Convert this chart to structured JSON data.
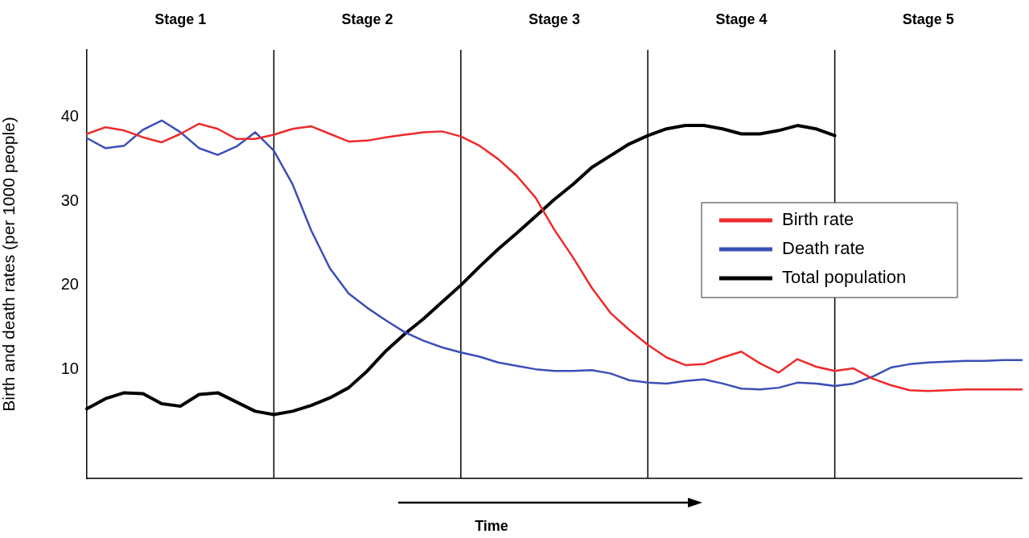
{
  "chart_data": {
    "type": "line",
    "xlabel": "Time",
    "ylabel": "Birth and death rates (per 1000 people)",
    "ylim": [
      -3,
      48
    ],
    "yticks": [
      10,
      20,
      30,
      40
    ],
    "tick_labels": "y",
    "legend": "right",
    "grid": "x",
    "categories": [
      null,
      null,
      null,
      null,
      null,
      null,
      null,
      null,
      null,
      null,
      null,
      null,
      null,
      null,
      null,
      null,
      null,
      null,
      null,
      null,
      null,
      null,
      null,
      null,
      null,
      null,
      null,
      null,
      null,
      null,
      null,
      null,
      null,
      null,
      null,
      null,
      null,
      null,
      null,
      null,
      null,
      null,
      null,
      null,
      null,
      null,
      null,
      null,
      null,
      null,
      null
    ],
    "series": [
      {
        "name": "Birth rate",
        "color": "#ee2a2a",
        "values": [
          38,
          38.8,
          38.4,
          37.6,
          37,
          38,
          39.2,
          38.6,
          37.4,
          37.4,
          37.9,
          38.6,
          38.9,
          38,
          37.1,
          37.2,
          37.6,
          37.9,
          38.2,
          38.3,
          37.7,
          36.6,
          35,
          33,
          30.4,
          26.6,
          23.3,
          19.7,
          16.7,
          14.7,
          12.9,
          11.4,
          10.5,
          10.6,
          11.4,
          12.1,
          10.7,
          9.6,
          11.2,
          10.3,
          9.8,
          10.1,
          8.9,
          8.1,
          7.5,
          7.4,
          7.5,
          7.6,
          7.6,
          7.6,
          7.6
        ]
      },
      {
        "name": "Death rate",
        "color": "#3b4fb8",
        "values": [
          37.5,
          36.3,
          36.6,
          38.5,
          39.6,
          38.2,
          36.3,
          35.5,
          36.5,
          38.2,
          36,
          32,
          26.5,
          22,
          19,
          17.3,
          15.8,
          14.4,
          13.4,
          12.6,
          12,
          11.5,
          10.8,
          10.4,
          10,
          9.8,
          9.8,
          9.9,
          9.5,
          8.7,
          8.4,
          8.3,
          8.6,
          8.8,
          8.3,
          7.7,
          7.6,
          7.8,
          8.4,
          8.3,
          8,
          8.3,
          9.1,
          10.2,
          10.6,
          10.8,
          10.9,
          11,
          11,
          11.1,
          11.1
        ]
      },
      {
        "name": "Total population",
        "color": "#000000",
        "values": [
          5.3,
          6.5,
          7.2,
          7.1,
          5.9,
          5.6,
          7,
          7.2,
          6.1,
          5,
          4.6,
          5,
          5.7,
          6.6,
          7.8,
          9.8,
          12.2,
          14.2,
          16,
          18,
          20,
          22.2,
          24.3,
          26.2,
          28.2,
          30.2,
          32,
          34,
          35.4,
          36.8,
          37.8,
          38.6,
          39,
          39,
          38.6,
          38,
          38,
          38.4,
          39,
          38.6,
          37.8,
          null,
          null,
          null,
          null,
          null,
          null,
          null,
          null,
          null,
          null
        ]
      }
    ],
    "annotations": [
      "Stage 1",
      "Stage 2",
      "Stage 3",
      "Stage 4",
      "Stage 5"
    ]
  }
}
